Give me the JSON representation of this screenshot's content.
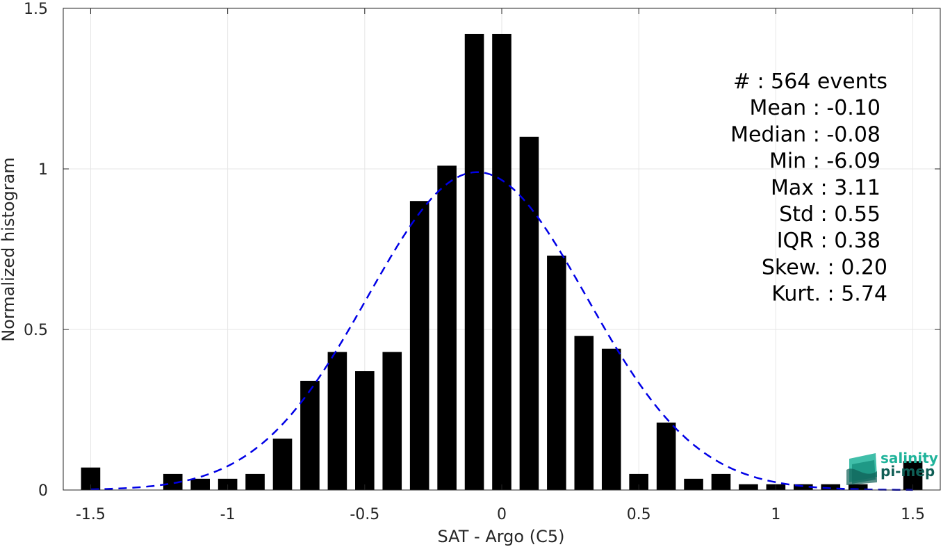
{
  "chart_data": {
    "type": "bar",
    "xlabel": "SAT - Argo (C5)",
    "ylabel": "Normalized histogram",
    "xlim": [
      -1.6,
      1.6
    ],
    "ylim": [
      0,
      1.5
    ],
    "xticks": [
      -1.5,
      -1,
      -0.5,
      0,
      0.5,
      1,
      1.5
    ],
    "xtick_labels": [
      "-1.5",
      "-1",
      "-0.5",
      "0",
      "0.5",
      "1",
      "1.5"
    ],
    "yticks": [
      0,
      0.5,
      1,
      1.5
    ],
    "ytick_labels": [
      "0",
      "0.5",
      "1",
      "1.5"
    ],
    "grid": true,
    "bar_width": 0.07,
    "bars": [
      {
        "x": -1.5,
        "value": 0.07
      },
      {
        "x": -1.2,
        "value": 0.05
      },
      {
        "x": -1.1,
        "value": 0.035
      },
      {
        "x": -1.0,
        "value": 0.035
      },
      {
        "x": -0.9,
        "value": 0.05
      },
      {
        "x": -0.8,
        "value": 0.16
      },
      {
        "x": -0.7,
        "value": 0.34
      },
      {
        "x": -0.6,
        "value": 0.43
      },
      {
        "x": -0.5,
        "value": 0.37
      },
      {
        "x": -0.4,
        "value": 0.43
      },
      {
        "x": -0.3,
        "value": 0.9
      },
      {
        "x": -0.2,
        "value": 1.01
      },
      {
        "x": -0.1,
        "value": 1.42
      },
      {
        "x": 0.0,
        "value": 1.42
      },
      {
        "x": 0.1,
        "value": 1.1
      },
      {
        "x": 0.2,
        "value": 0.73
      },
      {
        "x": 0.3,
        "value": 0.48
      },
      {
        "x": 0.4,
        "value": 0.44
      },
      {
        "x": 0.5,
        "value": 0.05
      },
      {
        "x": 0.6,
        "value": 0.21
      },
      {
        "x": 0.7,
        "value": 0.035
      },
      {
        "x": 0.8,
        "value": 0.05
      },
      {
        "x": 0.9,
        "value": 0.018
      },
      {
        "x": 1.0,
        "value": 0.018
      },
      {
        "x": 1.1,
        "value": 0.018
      },
      {
        "x": 1.2,
        "value": 0.018
      },
      {
        "x": 1.3,
        "value": 0.018
      },
      {
        "x": 1.5,
        "value": 0.09
      }
    ],
    "bar_color": "#000000",
    "fit_curve": {
      "style": "dashed",
      "color": "#0000e6",
      "mean": -0.09,
      "std": 0.4,
      "peak": 0.99,
      "x_range": [
        -1.5,
        1.5
      ]
    },
    "stats": [
      {
        "label": "#  : 564 events"
      },
      {
        "label": "Mean : -0.10"
      },
      {
        "label": "Median : -0.08"
      },
      {
        "label": "Min : -6.09"
      },
      {
        "label": "Max : 3.11"
      },
      {
        "label": "Std : 0.55"
      },
      {
        "label": "IQR : 0.38"
      },
      {
        "label": "Skew. : 0.20"
      },
      {
        "label": "Kurt. : 5.74"
      }
    ]
  },
  "logo": {
    "line1": "salinity",
    "line2": "pi-mep",
    "color1": "#1fb39a",
    "color2": "#0f5e55"
  }
}
